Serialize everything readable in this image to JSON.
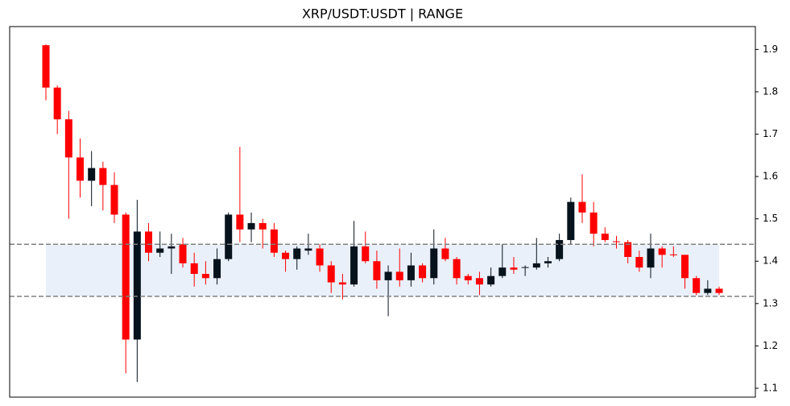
{
  "chart_data": {
    "type": "candlestick",
    "title": "XRP/USDT:USDT | RANGE",
    "open": [
      1.91,
      1.81,
      1.735,
      1.645,
      1.59,
      1.62,
      1.58,
      1.51,
      1.215,
      1.47,
      1.42,
      1.43,
      1.44,
      1.395,
      1.37,
      1.36,
      1.405,
      1.51,
      1.475,
      1.49,
      1.475,
      1.42,
      1.405,
      1.425,
      1.43,
      1.39,
      1.35,
      1.345,
      1.435,
      1.4,
      1.355,
      1.375,
      1.355,
      1.39,
      1.36,
      1.43,
      1.405,
      1.365,
      1.36,
      1.345,
      1.365,
      1.385,
      1.385,
      1.385,
      1.395,
      1.405,
      1.45,
      1.54,
      1.515,
      1.465,
      1.447,
      1.445,
      1.41,
      1.385,
      1.43,
      1.416,
      1.415,
      1.36,
      1.325,
      1.335
    ],
    "high": [
      1.912,
      1.815,
      1.755,
      1.69,
      1.66,
      1.635,
      1.61,
      1.515,
      1.545,
      1.49,
      1.47,
      1.465,
      1.455,
      1.42,
      1.4,
      1.43,
      1.515,
      1.67,
      1.515,
      1.5,
      1.49,
      1.425,
      1.435,
      1.465,
      1.44,
      1.4,
      1.37,
      1.495,
      1.47,
      1.425,
      1.39,
      1.43,
      1.42,
      1.395,
      1.475,
      1.455,
      1.41,
      1.37,
      1.375,
      1.385,
      1.44,
      1.41,
      1.39,
      1.455,
      1.41,
      1.465,
      1.55,
      1.605,
      1.54,
      1.48,
      1.46,
      1.45,
      1.425,
      1.465,
      1.435,
      1.435,
      1.415,
      1.365,
      1.355,
      1.34
    ],
    "low": [
      1.78,
      1.7,
      1.5,
      1.55,
      1.53,
      1.52,
      1.49,
      1.135,
      1.115,
      1.4,
      1.41,
      1.37,
      1.385,
      1.34,
      1.345,
      1.345,
      1.4,
      1.445,
      1.445,
      1.43,
      1.41,
      1.375,
      1.38,
      1.415,
      1.375,
      1.325,
      1.31,
      1.34,
      1.395,
      1.335,
      1.27,
      1.34,
      1.34,
      1.35,
      1.345,
      1.4,
      1.345,
      1.345,
      1.32,
      1.34,
      1.36,
      1.37,
      1.365,
      1.38,
      1.385,
      1.4,
      1.44,
      1.49,
      1.435,
      1.445,
      1.43,
      1.395,
      1.375,
      1.36,
      1.385,
      1.41,
      1.335,
      1.32,
      1.32,
      1.32
    ],
    "close": [
      1.81,
      1.735,
      1.645,
      1.59,
      1.62,
      1.58,
      1.51,
      1.215,
      1.47,
      1.42,
      1.43,
      1.435,
      1.395,
      1.37,
      1.36,
      1.405,
      1.51,
      1.475,
      1.49,
      1.475,
      1.42,
      1.405,
      1.43,
      1.43,
      1.39,
      1.35,
      1.345,
      1.435,
      1.4,
      1.355,
      1.375,
      1.355,
      1.39,
      1.36,
      1.43,
      1.405,
      1.36,
      1.355,
      1.345,
      1.365,
      1.385,
      1.38,
      1.386,
      1.395,
      1.4,
      1.45,
      1.54,
      1.515,
      1.465,
      1.45,
      1.445,
      1.41,
      1.385,
      1.43,
      1.415,
      1.414,
      1.36,
      1.325,
      1.335,
      1.325
    ],
    "up_color": "#06121c",
    "down_color": "#ff0000",
    "range_lines": [
      1.44,
      1.317
    ],
    "range_line_color": "#808080",
    "range_fill": "#e9f0fa",
    "ylim": [
      1.079,
      1.954
    ],
    "yticks": [
      1.1,
      1.2,
      1.3,
      1.4,
      1.5,
      1.6,
      1.7,
      1.8,
      1.9
    ]
  }
}
